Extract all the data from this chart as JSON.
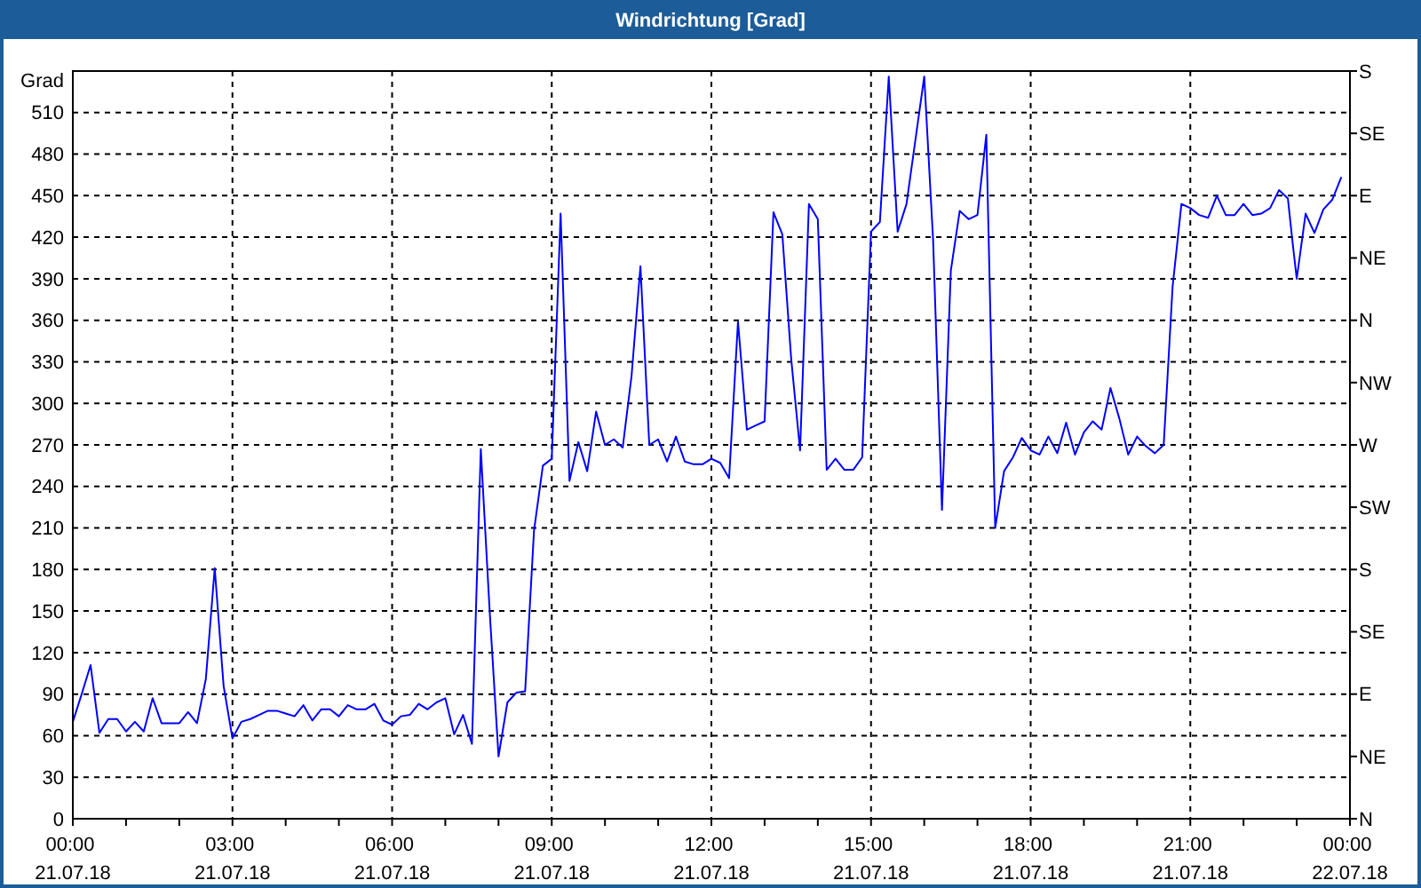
{
  "chart_data": {
    "type": "line",
    "title": "Windrichtung [Grad]",
    "ylabel": "Grad",
    "x": [
      "--07-21T00:00",
      "--07-21T00:10",
      "--07-21T00:20",
      "--07-21T00:30",
      "--07-21T00:40",
      "--07-21T00:50",
      "--07-21T01:00",
      "--07-21T01:10",
      "--07-21T01:20",
      "--07-21T01:30",
      "--07-21T01:40",
      "--07-21T01:50",
      "--07-21T02:00",
      "--07-21T02:10",
      "--07-21T02:20",
      "--07-21T02:30",
      "--07-21T02:40",
      "--07-21T02:50",
      "--07-21T03:00",
      "--07-21T03:10",
      "--07-21T03:20",
      "--07-21T03:30",
      "--07-21T03:40",
      "--07-21T03:50",
      "--07-21T04:00",
      "--07-21T04:10",
      "--07-21T04:20",
      "--07-21T04:30",
      "--07-21T04:40",
      "--07-21T04:50",
      "--07-21T05:00",
      "--07-21T05:10",
      "--07-21T05:20",
      "--07-21T05:30",
      "--07-21T05:40",
      "--07-21T05:50",
      "--07-21T06:00",
      "--07-21T06:10",
      "--07-21T06:20",
      "--07-21T06:30",
      "--07-21T06:40",
      "--07-21T06:50",
      "--07-21T07:00",
      "--07-21T07:10",
      "--07-21T07:20",
      "--07-21T07:30",
      "--07-21T07:40",
      "--07-21T07:50",
      "--07-21T08:00",
      "--07-21T08:10",
      "--07-21T08:20",
      "--07-21T08:30",
      "--07-21T08:40",
      "--07-21T08:50",
      "--07-21T09:00",
      "--07-21T09:10",
      "--07-21T09:20",
      "--07-21T09:30",
      "--07-21T09:40",
      "--07-21T09:50",
      "--07-21T10:00",
      "--07-21T10:10",
      "--07-21T10:20",
      "--07-21T10:30",
      "--07-21T10:40",
      "--07-21T10:50",
      "--07-21T11:00",
      "--07-21T11:10",
      "--07-21T11:20",
      "--07-21T11:30",
      "--07-21T11:40",
      "--07-21T11:50",
      "--07-21T12:00",
      "--07-21T12:10",
      "--07-21T12:20",
      "--07-21T12:30",
      "--07-21T12:40",
      "--07-21T12:50",
      "--07-21T13:00",
      "--07-21T13:10",
      "--07-21T13:20",
      "--07-21T13:30",
      "--07-21T13:40",
      "--07-21T13:50",
      "--07-21T14:00",
      "--07-21T14:10",
      "--07-21T14:20",
      "--07-21T14:30",
      "--07-21T14:40",
      "--07-21T14:50",
      "--07-21T15:00",
      "--07-21T15:10",
      "--07-21T15:20",
      "--07-21T15:30",
      "--07-21T15:40",
      "--07-21T15:50",
      "--07-21T16:00",
      "--07-21T16:10",
      "--07-21T16:20",
      "--07-21T16:30",
      "--07-21T16:40",
      "--07-21T16:50",
      "--07-21T17:00",
      "--07-21T17:10",
      "--07-21T17:20",
      "--07-21T17:30",
      "--07-21T17:40",
      "--07-21T17:50",
      "--07-21T18:00",
      "--07-21T18:10",
      "--07-21T18:20",
      "--07-21T18:30",
      "--07-21T18:40",
      "--07-21T18:50",
      "--07-21T19:00",
      "--07-21T19:10",
      "--07-21T19:20",
      "--07-21T19:30",
      "--07-21T19:40",
      "--07-21T19:50",
      "--07-21T20:00",
      "--07-21T20:10",
      "--07-21T20:20",
      "--07-21T20:30",
      "--07-21T20:40",
      "--07-21T20:50",
      "--07-21T21:00",
      "--07-21T21:10",
      "--07-21T21:20",
      "--07-21T21:30",
      "--07-21T21:40",
      "--07-21T21:50",
      "--07-21T22:00",
      "--07-21T22:10",
      "--07-21T22:20",
      "--07-21T22:30",
      "--07-21T22:40",
      "--07-21T22:50",
      "--07-21T22:55",
      "--07-21T23:00",
      "--07-21T23:10",
      "--07-21T23:20",
      "--07-21T23:30",
      "--07-21T23:40",
      "--07-21T23:50"
    ],
    "series": [
      {
        "color": "#0000ff",
        "values": [
          70,
          90,
          111,
          62,
          72,
          72,
          63,
          70,
          63,
          87,
          69,
          69,
          69,
          77,
          69,
          101,
          181,
          96,
          58,
          70,
          72,
          75,
          78,
          78,
          76,
          74,
          82,
          71,
          79,
          79,
          74,
          82,
          79,
          79,
          83,
          71,
          68,
          74,
          75,
          83,
          79,
          84,
          87,
          61,
          75,
          54,
          267,
          150,
          45,
          84,
          91,
          92,
          208,
          255,
          260,
          437,
          244,
          272,
          251,
          294,
          270,
          274,
          268,
          320,
          399,
          270,
          274,
          258,
          276,
          258,
          256,
          256,
          260,
          257,
          246,
          359,
          281,
          284,
          287,
          438,
          422,
          332,
          266,
          444,
          433,
          252,
          260,
          252,
          252,
          261,
          424,
          431,
          536,
          424,
          444,
          490,
          536,
          418,
          223,
          396,
          439,
          433,
          436,
          494,
          210,
          251,
          261,
          275,
          266,
          263,
          276,
          264,
          286,
          263,
          279,
          287,
          281,
          311,
          289,
          263,
          276,
          269,
          264,
          270,
          384,
          444,
          441,
          436,
          434,
          450,
          436,
          436,
          444,
          436,
          437,
          441,
          454,
          448,
          418,
          390,
          437,
          423,
          440,
          447,
          463
        ]
      }
    ],
    "xlim": [
      "--07-21T00:00",
      "--07-22T00:00"
    ],
    "xticks": [
      {
        "value": "--07-21T00:00",
        "label": "00:00\n21.07.18"
      },
      {
        "value": "--07-21T01:00",
        "label": null
      },
      {
        "value": "--07-21T02:00",
        "label": null
      },
      {
        "value": "--07-21T03:00",
        "label": "03:00\n21.07.18"
      },
      {
        "value": "--07-21T04:00",
        "label": null
      },
      {
        "value": "--07-21T05:00",
        "label": null
      },
      {
        "value": "--07-21T06:00",
        "label": "06:00\n21.07.18"
      },
      {
        "value": "--07-21T07:00",
        "label": null
      },
      {
        "value": "--07-21T08:00",
        "label": null
      },
      {
        "value": "--07-21T09:00",
        "label": "09:00\n21.07.18"
      },
      {
        "value": "--07-21T10:00",
        "label": null
      },
      {
        "value": "--07-21T11:00",
        "label": null
      },
      {
        "value": "--07-21T12:00",
        "label": "12:00\n21.07.18"
      },
      {
        "value": "--07-21T13:00",
        "label": null
      },
      {
        "value": "--07-21T14:00",
        "label": null
      },
      {
        "value": "--07-21T15:00",
        "label": "15:00\n21.07.18"
      },
      {
        "value": "--07-21T16:00",
        "label": null
      },
      {
        "value": "--07-21T17:00",
        "label": null
      },
      {
        "value": "--07-21T18:00",
        "label": "18:00\n21.07.18"
      },
      {
        "value": "--07-21T19:00",
        "label": null
      },
      {
        "value": "--07-21T20:00",
        "label": null
      },
      {
        "value": "--07-21T21:00",
        "label": "21:00\n21.07.18"
      },
      {
        "value": "--07-21T22:00",
        "label": null
      },
      {
        "value": "--07-21T23:00",
        "label": null
      },
      {
        "value": "--07-22T00:00",
        "label": "00:00\n22.07.18"
      }
    ],
    "ylim": [
      0,
      540
    ],
    "yticks": [
      0,
      30,
      60,
      90,
      120,
      150,
      180,
      210,
      240,
      270,
      300,
      330,
      360,
      390,
      420,
      450,
      480,
      510
    ],
    "y2_categories": [
      "S",
      "SE",
      "E",
      "NE",
      "N",
      "NW",
      "W",
      "SW",
      "S",
      "SE",
      "E",
      "NE",
      "N"
    ],
    "grid": true
  }
}
